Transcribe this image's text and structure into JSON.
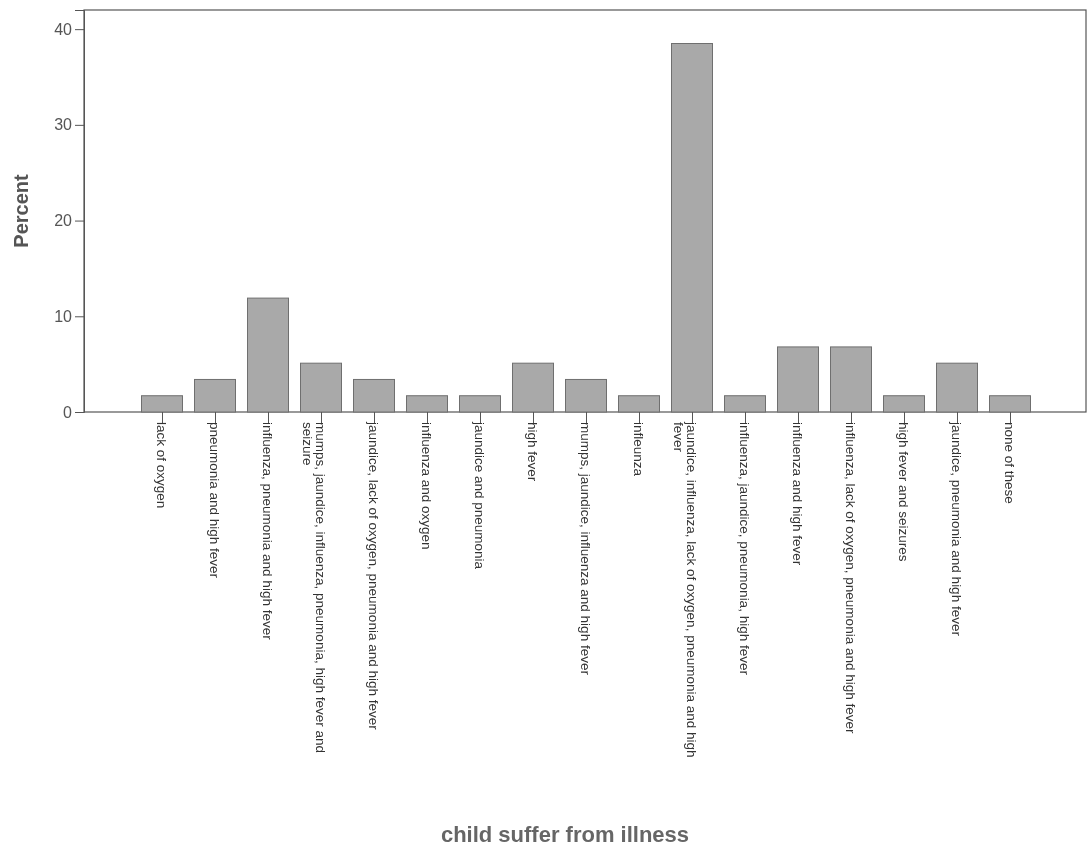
{
  "chart_data": {
    "type": "bar",
    "xlabel": "child suffer from illness",
    "ylabel": "Percent",
    "categories": [
      "lack of oxygen",
      "pneumonia and high fever",
      "influenza, pneumonia and high fever",
      "mumps, jaundice, influenza, pneumonia, high fever and seizure",
      "jaundice, lack of oxygen, pneumonia and high fever",
      "influenza and oxygen",
      "jaundice and pneumonia",
      "high fever",
      "mumps, jaundice, influenza and high fever",
      "infleunza",
      "jaundice, influenza, lack of oxygen, pneumonia and high fever",
      "influenza, jaundice, pneumonia, high fever",
      "influenza and high fever",
      "influenza, lack of oxygen, pneumonia and high fever",
      "high fever and seizures",
      "jaundice, pneumonia and high fever",
      "none of these"
    ],
    "values": [
      1.7,
      3.4,
      11.9,
      5.1,
      3.4,
      1.7,
      1.7,
      5.1,
      3.4,
      1.7,
      38.5,
      1.7,
      6.8,
      6.8,
      1.7,
      5.1,
      1.7
    ],
    "color": "#a9a9a9",
    "ylim": [
      0,
      42
    ],
    "yticks": [
      0,
      10,
      20,
      30,
      40
    ],
    "grid": false
  }
}
